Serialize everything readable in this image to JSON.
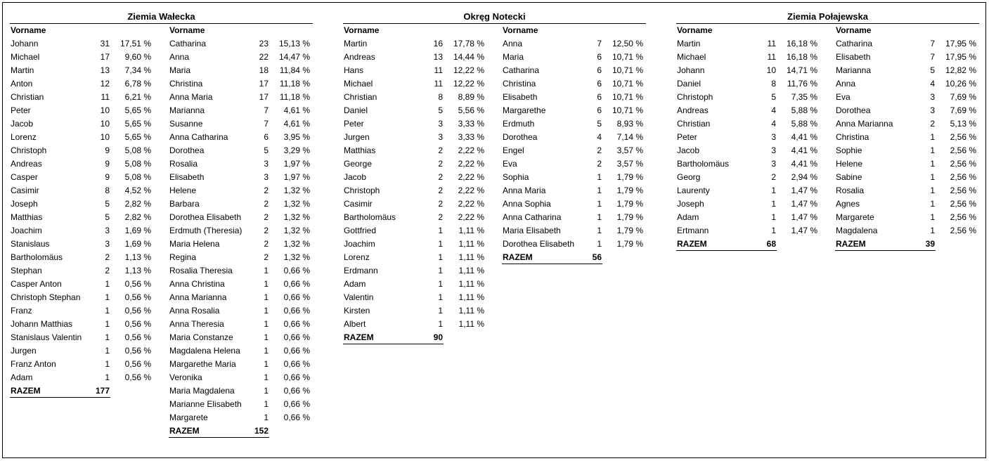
{
  "regions": [
    {
      "title": "Ziemia Wałecka",
      "columns": [
        {
          "header": "Vorname",
          "rows": [
            {
              "name": "Johann",
              "count": "31",
              "pct": "17,51 %"
            },
            {
              "name": "Michael",
              "count": "17",
              "pct": "9,60 %"
            },
            {
              "name": "Martin",
              "count": "13",
              "pct": "7,34 %"
            },
            {
              "name": "Anton",
              "count": "12",
              "pct": "6,78 %"
            },
            {
              "name": "Christian",
              "count": "11",
              "pct": "6,21 %"
            },
            {
              "name": "Peter",
              "count": "10",
              "pct": "5,65 %"
            },
            {
              "name": "Jacob",
              "count": "10",
              "pct": "5,65 %"
            },
            {
              "name": "Lorenz",
              "count": "10",
              "pct": "5,65 %"
            },
            {
              "name": "Christoph",
              "count": "9",
              "pct": "5,08 %"
            },
            {
              "name": "Andreas",
              "count": "9",
              "pct": "5,08 %"
            },
            {
              "name": "Casper",
              "count": "9",
              "pct": "5,08 %"
            },
            {
              "name": "Casimir",
              "count": "8",
              "pct": "4,52 %"
            },
            {
              "name": "Joseph",
              "count": "5",
              "pct": "2,82 %"
            },
            {
              "name": "Matthias",
              "count": "5",
              "pct": "2,82 %"
            },
            {
              "name": "Joachim",
              "count": "3",
              "pct": "1,69 %"
            },
            {
              "name": "Stanislaus",
              "count": "3",
              "pct": "1,69 %"
            },
            {
              "name": "Bartholomäus",
              "count": "2",
              "pct": "1,13 %"
            },
            {
              "name": "Stephan",
              "count": "2",
              "pct": "1,13 %"
            },
            {
              "name": "Casper Anton",
              "count": "1",
              "pct": "0,56 %"
            },
            {
              "name": "Christoph Stephan",
              "count": "1",
              "pct": "0,56 %"
            },
            {
              "name": "Franz",
              "count": "1",
              "pct": "0,56 %"
            },
            {
              "name": "Johann Matthias",
              "count": "1",
              "pct": "0,56 %"
            },
            {
              "name": "Stanislaus Valentin",
              "count": "1",
              "pct": "0,56 %"
            },
            {
              "name": "Jurgen",
              "count": "1",
              "pct": "0,56 %"
            },
            {
              "name": "Franz Anton",
              "count": "1",
              "pct": "0,56 %"
            },
            {
              "name": "Adam",
              "count": "1",
              "pct": "0,56 %"
            }
          ],
          "total_label": "RAZEM",
          "total": "177"
        },
        {
          "header": "Vorname",
          "rows": [
            {
              "name": "Catharina",
              "count": "23",
              "pct": "15,13 %"
            },
            {
              "name": "Anna",
              "count": "22",
              "pct": "14,47 %"
            },
            {
              "name": "Maria",
              "count": "18",
              "pct": "11,84 %"
            },
            {
              "name": "Christina",
              "count": "17",
              "pct": "11,18 %"
            },
            {
              "name": "Anna Maria",
              "count": "17",
              "pct": "11,18 %"
            },
            {
              "name": "Marianna",
              "count": "7",
              "pct": "4,61 %"
            },
            {
              "name": "Susanne",
              "count": "7",
              "pct": "4,61 %"
            },
            {
              "name": "Anna Catharina",
              "count": "6",
              "pct": "3,95 %"
            },
            {
              "name": "Dorothea",
              "count": "5",
              "pct": "3,29 %"
            },
            {
              "name": "Rosalia",
              "count": "3",
              "pct": "1,97 %"
            },
            {
              "name": "Elisabeth",
              "count": "3",
              "pct": "1,97 %"
            },
            {
              "name": "Helene",
              "count": "2",
              "pct": "1,32 %"
            },
            {
              "name": "Barbara",
              "count": "2",
              "pct": "1,32 %"
            },
            {
              "name": "Dorothea Elisabeth",
              "count": "2",
              "pct": "1,32 %"
            },
            {
              "name": "Erdmuth (Theresia)",
              "count": "2",
              "pct": "1,32 %"
            },
            {
              "name": "Maria Helena",
              "count": "2",
              "pct": "1,32 %"
            },
            {
              "name": "Regina",
              "count": "2",
              "pct": "1,32 %"
            },
            {
              "name": "Rosalia Theresia",
              "count": "1",
              "pct": "0,66 %"
            },
            {
              "name": "Anna Christina",
              "count": "1",
              "pct": "0,66 %"
            },
            {
              "name": "Anna Marianna",
              "count": "1",
              "pct": "0,66 %"
            },
            {
              "name": "Anna Rosalia",
              "count": "1",
              "pct": "0,66 %"
            },
            {
              "name": "Anna Theresia",
              "count": "1",
              "pct": "0,66 %"
            },
            {
              "name": "Maria Constanze",
              "count": "1",
              "pct": "0,66 %"
            },
            {
              "name": "Magdalena Helena",
              "count": "1",
              "pct": "0,66 %"
            },
            {
              "name": "Margarethe Maria",
              "count": "1",
              "pct": "0,66 %"
            },
            {
              "name": "Veronika",
              "count": "1",
              "pct": "0,66 %"
            },
            {
              "name": "Maria Magdalena",
              "count": "1",
              "pct": "0,66 %"
            },
            {
              "name": "Marianne Elisabeth",
              "count": "1",
              "pct": "0,66 %"
            },
            {
              "name": "Margarete",
              "count": "1",
              "pct": "0,66 %"
            }
          ],
          "total_label": "RAZEM",
          "total": "152"
        }
      ]
    },
    {
      "title": "Okręg Notecki",
      "columns": [
        {
          "header": "Vorname",
          "rows": [
            {
              "name": "Martin",
              "count": "16",
              "pct": "17,78 %"
            },
            {
              "name": "Andreas",
              "count": "13",
              "pct": "14,44 %"
            },
            {
              "name": "Hans",
              "count": "11",
              "pct": "12,22 %"
            },
            {
              "name": "Michael",
              "count": "11",
              "pct": "12,22 %"
            },
            {
              "name": "Christian",
              "count": "8",
              "pct": "8,89 %"
            },
            {
              "name": "Daniel",
              "count": "5",
              "pct": "5,56 %"
            },
            {
              "name": "Peter",
              "count": "3",
              "pct": "3,33 %"
            },
            {
              "name": "Jurgen",
              "count": "3",
              "pct": "3,33 %"
            },
            {
              "name": "Matthias",
              "count": "2",
              "pct": "2,22 %"
            },
            {
              "name": "George",
              "count": "2",
              "pct": "2,22 %"
            },
            {
              "name": "Jacob",
              "count": "2",
              "pct": "2,22 %"
            },
            {
              "name": "Christoph",
              "count": "2",
              "pct": "2,22 %"
            },
            {
              "name": "Casimir",
              "count": "2",
              "pct": "2,22 %"
            },
            {
              "name": "Bartholomäus",
              "count": "2",
              "pct": "2,22 %"
            },
            {
              "name": "Gottfried",
              "count": "1",
              "pct": "1,11 %"
            },
            {
              "name": "Joachim",
              "count": "1",
              "pct": "1,11 %"
            },
            {
              "name": "Lorenz",
              "count": "1",
              "pct": "1,11 %"
            },
            {
              "name": "Erdmann",
              "count": "1",
              "pct": "1,11 %"
            },
            {
              "name": "Adam",
              "count": "1",
              "pct": "1,11 %"
            },
            {
              "name": "Valentin",
              "count": "1",
              "pct": "1,11 %"
            },
            {
              "name": "Kirsten",
              "count": "1",
              "pct": "1,11 %"
            },
            {
              "name": "Albert",
              "count": "1",
              "pct": "1,11 %"
            }
          ],
          "total_label": "RAZEM",
          "total": "90"
        },
        {
          "header": "Vorname",
          "rows": [
            {
              "name": "Anna",
              "count": "7",
              "pct": "12,50 %"
            },
            {
              "name": "Maria",
              "count": "6",
              "pct": "10,71 %"
            },
            {
              "name": "Catharina",
              "count": "6",
              "pct": "10,71 %"
            },
            {
              "name": "Christina",
              "count": "6",
              "pct": "10,71 %"
            },
            {
              "name": "Elisabeth",
              "count": "6",
              "pct": "10,71 %"
            },
            {
              "name": "Margarethe",
              "count": "6",
              "pct": "10,71 %"
            },
            {
              "name": "Erdmuth",
              "count": "5",
              "pct": "8,93 %"
            },
            {
              "name": "Dorothea",
              "count": "4",
              "pct": "7,14 %"
            },
            {
              "name": "Engel",
              "count": "2",
              "pct": "3,57 %"
            },
            {
              "name": "Eva",
              "count": "2",
              "pct": "3,57 %"
            },
            {
              "name": "Sophia",
              "count": "1",
              "pct": "1,79 %"
            },
            {
              "name": "Anna Maria",
              "count": "1",
              "pct": "1,79 %"
            },
            {
              "name": "Anna Sophia",
              "count": "1",
              "pct": "1,79 %"
            },
            {
              "name": "Anna Catharina",
              "count": "1",
              "pct": "1,79 %"
            },
            {
              "name": "Maria Elisabeth",
              "count": "1",
              "pct": "1,79 %"
            },
            {
              "name": "Dorothea Elisabeth",
              "count": "1",
              "pct": "1,79 %"
            }
          ],
          "total_label": "RAZEM",
          "total": "56"
        }
      ]
    },
    {
      "title": "Ziemia Połajewska",
      "columns": [
        {
          "header": "Vorname",
          "rows": [
            {
              "name": "Martin",
              "count": "11",
              "pct": "16,18 %"
            },
            {
              "name": "Michael",
              "count": "11",
              "pct": "16,18 %"
            },
            {
              "name": "Johann",
              "count": "10",
              "pct": "14,71 %"
            },
            {
              "name": "Daniel",
              "count": "8",
              "pct": "11,76 %"
            },
            {
              "name": "Christoph",
              "count": "5",
              "pct": "7,35 %"
            },
            {
              "name": "Andreas",
              "count": "4",
              "pct": "5,88 %"
            },
            {
              "name": "Christian",
              "count": "4",
              "pct": "5,88 %"
            },
            {
              "name": "Peter",
              "count": "3",
              "pct": "4,41 %"
            },
            {
              "name": "Jacob",
              "count": "3",
              "pct": "4,41 %"
            },
            {
              "name": "Bartholomäus",
              "count": "3",
              "pct": "4,41 %"
            },
            {
              "name": "Georg",
              "count": "2",
              "pct": "2,94 %"
            },
            {
              "name": "Laurenty",
              "count": "1",
              "pct": "1,47 %"
            },
            {
              "name": "Joseph",
              "count": "1",
              "pct": "1,47 %"
            },
            {
              "name": "Adam",
              "count": "1",
              "pct": "1,47 %"
            },
            {
              "name": "Ertmann",
              "count": "1",
              "pct": "1,47 %"
            }
          ],
          "total_label": "RAZEM",
          "total": "68"
        },
        {
          "header": "Vorname",
          "rows": [
            {
              "name": "Catharina",
              "count": "7",
              "pct": "17,95 %"
            },
            {
              "name": "Elisabeth",
              "count": "7",
              "pct": "17,95 %"
            },
            {
              "name": "Marianna",
              "count": "5",
              "pct": "12,82 %"
            },
            {
              "name": "Anna",
              "count": "4",
              "pct": "10,26 %"
            },
            {
              "name": "Eva",
              "count": "3",
              "pct": "7,69 %"
            },
            {
              "name": "Dorothea",
              "count": "3",
              "pct": "7,69 %"
            },
            {
              "name": "Anna Marianna",
              "count": "2",
              "pct": "5,13 %"
            },
            {
              "name": "Christina",
              "count": "1",
              "pct": "2,56 %"
            },
            {
              "name": "Sophie",
              "count": "1",
              "pct": "2,56 %"
            },
            {
              "name": "Helene",
              "count": "1",
              "pct": "2,56 %"
            },
            {
              "name": "Sabine",
              "count": "1",
              "pct": "2,56 %"
            },
            {
              "name": "Rosalia",
              "count": "1",
              "pct": "2,56 %"
            },
            {
              "name": "Agnes",
              "count": "1",
              "pct": "2,56 %"
            },
            {
              "name": "Margarete",
              "count": "1",
              "pct": "2,56 %"
            },
            {
              "name": "Magdalena",
              "count": "1",
              "pct": "2,56 %"
            }
          ],
          "total_label": "RAZEM",
          "total": "39"
        }
      ]
    }
  ]
}
